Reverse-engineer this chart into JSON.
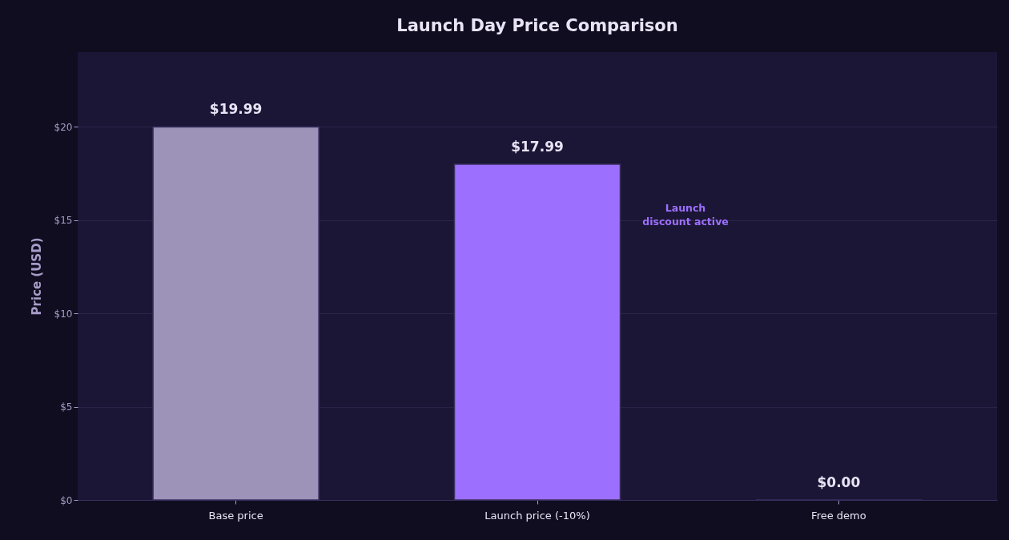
{
  "chart_data": {
    "type": "bar",
    "title": "Launch Day Price Comparison",
    "ylabel": "Price (USD)",
    "categories": [
      "Base price",
      "Launch price (-10%)",
      "Free demo"
    ],
    "values": [
      19.99,
      17.99,
      0
    ],
    "colors": [
      "#9d92b8",
      "#9d6fff",
      "#3a3160"
    ],
    "value_labels": [
      "$19.99",
      "$17.99",
      "$0.00"
    ],
    "ylim": [
      0,
      24
    ],
    "yticks": [
      {
        "value": 0,
        "label": "$0"
      },
      {
        "value": 5,
        "label": "$5"
      },
      {
        "value": 10,
        "label": "$10"
      },
      {
        "value": 15,
        "label": "$15"
      },
      {
        "value": 20,
        "label": "$20"
      }
    ],
    "grid": "y",
    "annotations": [
      "Launch\ndiscount active"
    ]
  }
}
